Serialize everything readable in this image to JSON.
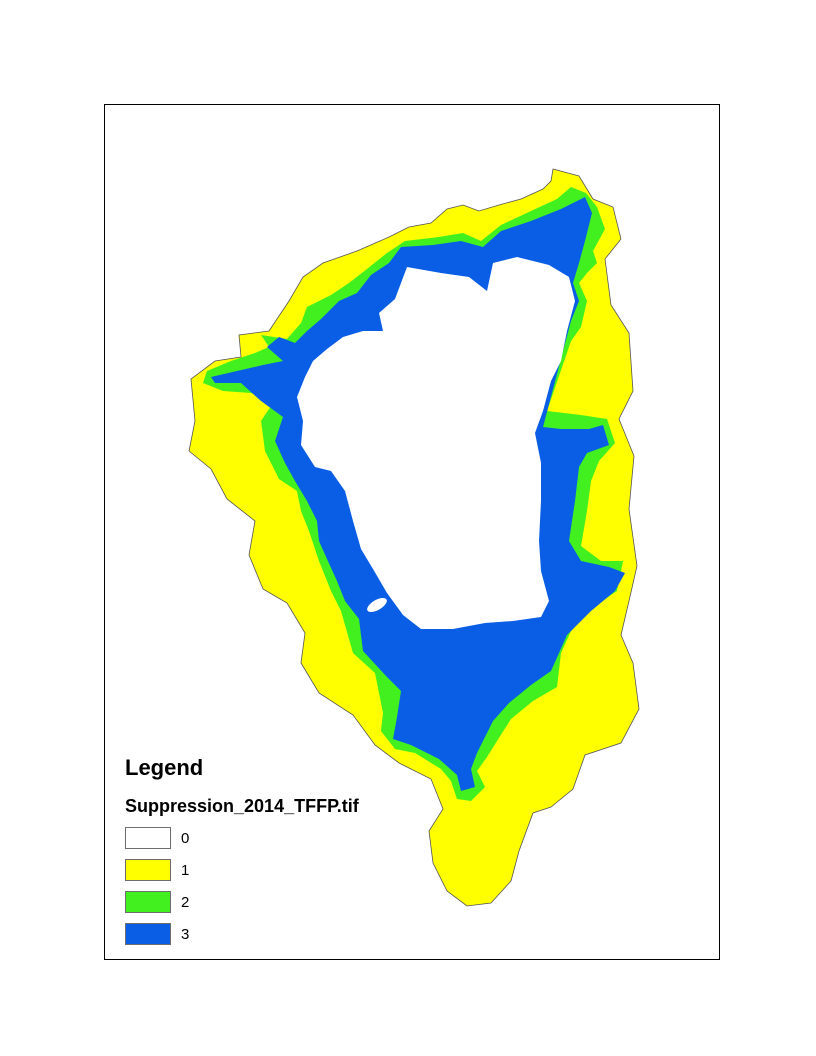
{
  "legend": {
    "title": "Legend",
    "layer_name": "Suppression_2014_TFFP.tif",
    "classes": [
      {
        "label": "0",
        "color": "#ffffff"
      },
      {
        "label": "1",
        "color": "#ffff00"
      },
      {
        "label": "2",
        "color": "#41f01e"
      },
      {
        "label": "3",
        "color": "#0a5ee6"
      }
    ]
  },
  "map": {
    "zones": [
      {
        "class": "1",
        "color": "#ffff00"
      },
      {
        "class": "2",
        "color": "#41f01e"
      },
      {
        "class": "3",
        "color": "#0a5ee6"
      },
      {
        "class": "0",
        "color": "#ffffff"
      }
    ]
  }
}
